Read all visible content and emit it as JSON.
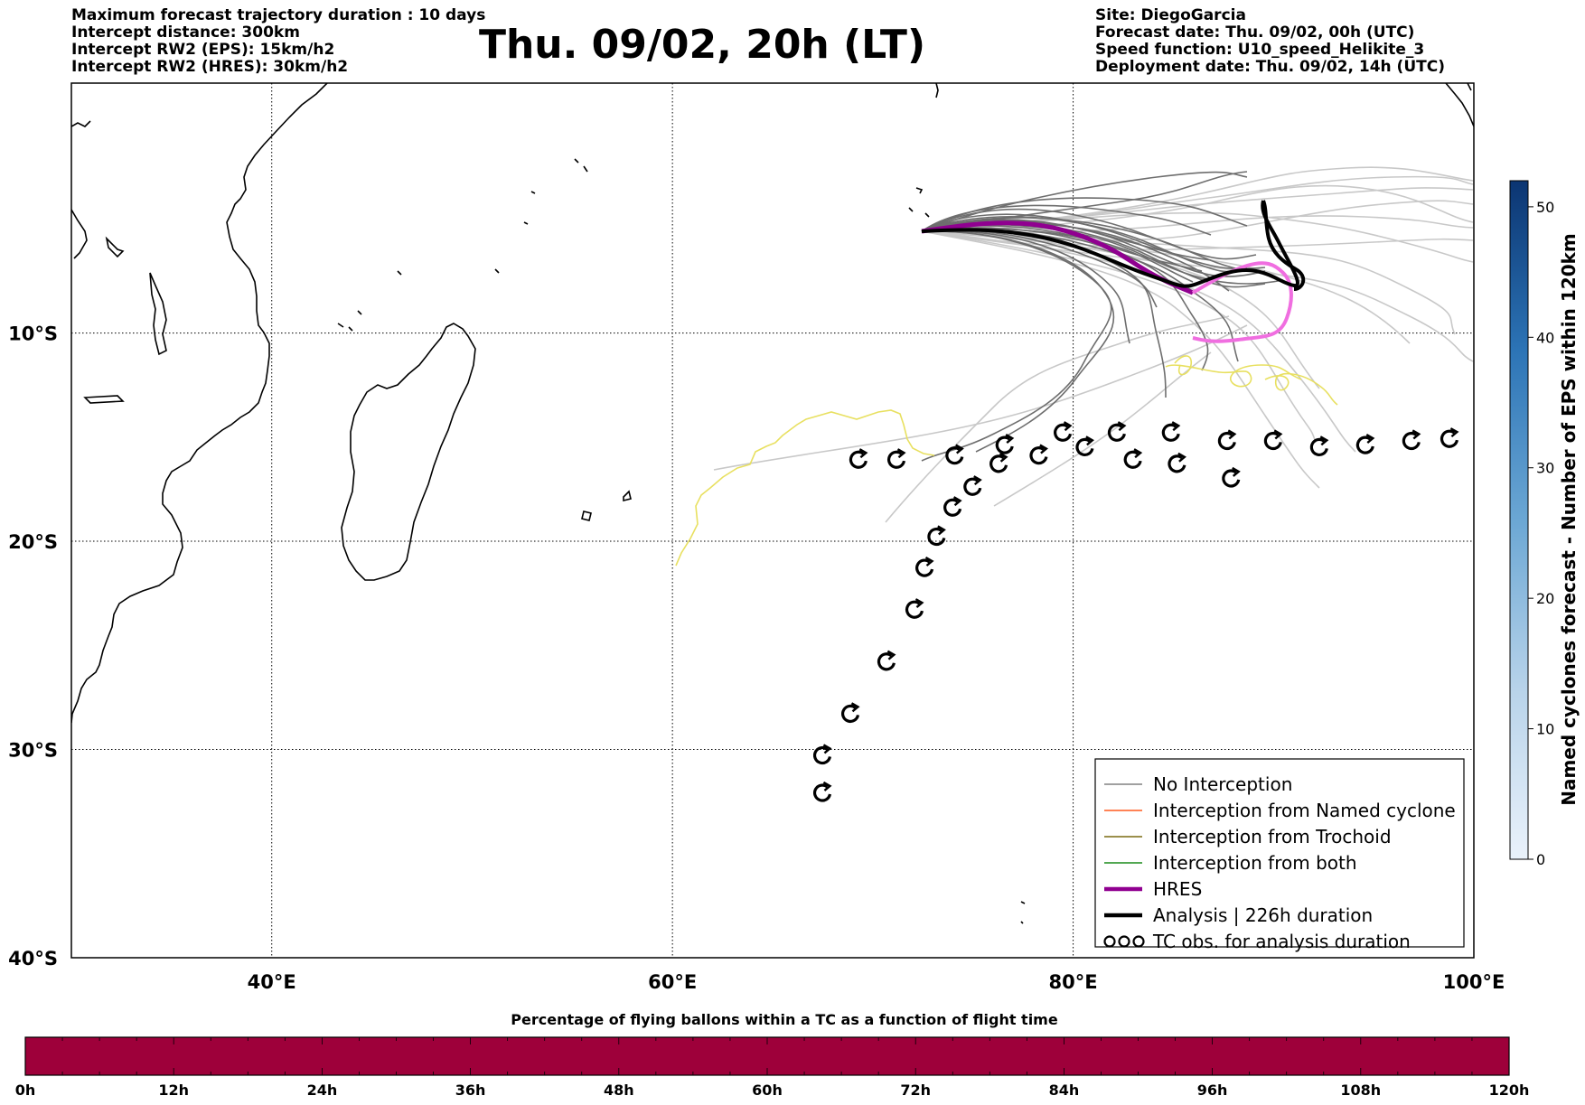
{
  "header_left": [
    "Maximum forecast trajectory duration : 10 days",
    "Intercept distance: 300km",
    "Intercept RW2 (EPS):  15km/h2",
    "Intercept RW2 (HRES): 30km/h2"
  ],
  "title": "Thu. 09/02, 20h (LT)",
  "header_right": [
    "Site: DiegoGarcia",
    "Forecast date: Thu. 09/02, 00h (UTC)",
    "Speed function: U10_speed_Helikite_3",
    "Deployment date: Thu. 09/02, 14h (UTC)"
  ],
  "map": {
    "lon_range": [
      30,
      100
    ],
    "lat_range": [
      -40,
      2
    ],
    "lon_ticks": [
      "40°E",
      "60°E",
      "80°E",
      "100°E"
    ],
    "lat_ticks": [
      "10°S",
      "20°S",
      "30°S",
      "40°S"
    ],
    "grid": true,
    "analysis_duration_hours": 226,
    "tc_obs": [
      [
        67.5,
        -32.1
      ],
      [
        67.5,
        -30.3
      ],
      [
        68.9,
        -28.3
      ],
      [
        70.7,
        -25.8
      ],
      [
        72.1,
        -23.3
      ],
      [
        72.6,
        -21.3
      ],
      [
        73.2,
        -19.8
      ],
      [
        74.0,
        -18.4
      ],
      [
        75.0,
        -17.4
      ],
      [
        76.3,
        -16.3
      ],
      [
        78.3,
        -15.9
      ],
      [
        69.3,
        -16.1
      ],
      [
        71.2,
        -16.1
      ],
      [
        74.1,
        -15.9
      ],
      [
        76.6,
        -15.4
      ],
      [
        79.5,
        -14.8
      ],
      [
        80.6,
        -15.5
      ],
      [
        82.2,
        -14.8
      ],
      [
        83.0,
        -16.1
      ],
      [
        84.9,
        -14.8
      ],
      [
        85.2,
        -16.3
      ],
      [
        87.7,
        -15.2
      ],
      [
        87.9,
        -17.0
      ],
      [
        90.0,
        -15.2
      ],
      [
        92.3,
        -15.5
      ],
      [
        94.6,
        -15.4
      ],
      [
        96.9,
        -15.2
      ],
      [
        98.8,
        -15.1
      ]
    ]
  },
  "legend": {
    "position": "bottom-right",
    "entries": [
      {
        "label": "No Interception",
        "color": "#808080",
        "style": "thin"
      },
      {
        "label": "Interception from Named cyclone",
        "color": "#ff5a1f",
        "style": "thin"
      },
      {
        "label": "Interception from Trochoid",
        "color": "#7a6a10",
        "style": "thin"
      },
      {
        "label": "Interception from both",
        "color": "#1a8c1a",
        "style": "thin"
      },
      {
        "label": "HRES",
        "color": "#900090",
        "style": "thick"
      },
      {
        "label": "Analysis | 226h duration",
        "color": "#000000",
        "style": "thick"
      },
      {
        "label": "TC obs. for analysis duration",
        "color": "#000000",
        "style": "symbol"
      }
    ]
  },
  "colorbar_right": {
    "label": "Named cyclones forecast - Number of EPS within 120km",
    "ticks": [
      "0",
      "10",
      "20",
      "30",
      "40",
      "50"
    ],
    "range": [
      0,
      52
    ]
  },
  "bottom_bar": {
    "title": "Percentage of flying ballons within a TC as a function of flight time",
    "ticks": [
      "0h",
      "12h",
      "24h",
      "36h",
      "48h",
      "60h",
      "72h",
      "84h",
      "96h",
      "108h",
      "120h"
    ],
    "color": "#9e003a"
  }
}
